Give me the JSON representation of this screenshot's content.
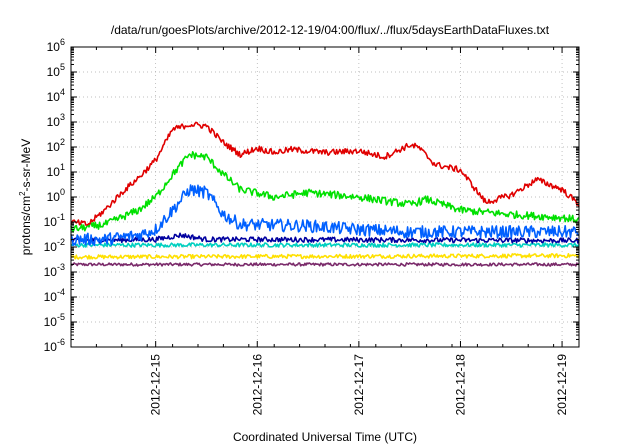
{
  "chart_data": {
    "type": "line",
    "title": "/data/run/goesPlots/archive/2012-12-19/04:00/flux/../flux/5daysEarthDataFluxes.txt",
    "xlabel": "Coordinated Universal Time (UTC)",
    "ylabel": {
      "base": "protons/cm",
      "sup": "2",
      "rest": "-s-sr-MeV"
    },
    "scale": {
      "y": "log",
      "x": "time"
    },
    "xlim": [
      "2012-12-14 04:00",
      "2012-12-19 04:00"
    ],
    "ylim": [
      1e-06,
      1000000.0
    ],
    "grid": true,
    "x_ticks": [
      "2012-12-15",
      "2012-12-16",
      "2012-12-17",
      "2012-12-18",
      "2012-12-19"
    ],
    "y_ticks": [
      {
        "base": "10",
        "exp": "6"
      },
      {
        "base": "10",
        "exp": "5"
      },
      {
        "base": "10",
        "exp": "4"
      },
      {
        "base": "10",
        "exp": "3"
      },
      {
        "base": "10",
        "exp": "2"
      },
      {
        "base": "10",
        "exp": "1"
      },
      {
        "base": "10",
        "exp": "0"
      },
      {
        "base": "10",
        "exp": "-1"
      },
      {
        "base": "10",
        "exp": "-2"
      },
      {
        "base": "10",
        "exp": "-3"
      },
      {
        "base": "10",
        "exp": "-4"
      },
      {
        "base": "10",
        "exp": "-5"
      },
      {
        "base": "10",
        "exp": "-6"
      }
    ],
    "series": [
      {
        "color": "#e00000",
        "noise": 0.12,
        "x": [
          "2012-12-14 04:00",
          "2012-12-14 08:00",
          "2012-12-14 12:00",
          "2012-12-14 16:00",
          "2012-12-14 20:00",
          "2012-12-15 00:00",
          "2012-12-15 04:00",
          "2012-12-15 08:00",
          "2012-12-15 12:00",
          "2012-12-15 16:00",
          "2012-12-15 20:00",
          "2012-12-16 00:00",
          "2012-12-16 04:00",
          "2012-12-16 08:00",
          "2012-12-16 16:00",
          "2012-12-17 00:00",
          "2012-12-17 06:00",
          "2012-12-17 12:00",
          "2012-12-17 14:00",
          "2012-12-17 18:00",
          "2012-12-18 00:00",
          "2012-12-18 06:00",
          "2012-12-18 12:00",
          "2012-12-18 18:00",
          "2012-12-19 00:00",
          "2012-12-19 04:00"
        ],
        "y": [
          0.1,
          0.08,
          0.3,
          1.5,
          6,
          30,
          500,
          800,
          700,
          150,
          50,
          90,
          60,
          80,
          60,
          70,
          40,
          120,
          100,
          20,
          12,
          0.6,
          1.2,
          5,
          2,
          0.5
        ]
      },
      {
        "color": "#00e000",
        "noise": 0.15,
        "x": [
          "2012-12-14 04:00",
          "2012-12-14 12:00",
          "2012-12-14 20:00",
          "2012-12-15 00:00",
          "2012-12-15 04:00",
          "2012-12-15 08:00",
          "2012-12-15 12:00",
          "2012-12-15 16:00",
          "2012-12-15 20:00",
          "2012-12-16 04:00",
          "2012-12-16 12:00",
          "2012-12-17 00:00",
          "2012-12-17 12:00",
          "2012-12-17 16:00",
          "2012-12-18 00:00",
          "2012-12-18 12:00",
          "2012-12-19 00:00",
          "2012-12-19 04:00"
        ],
        "y": [
          0.05,
          0.08,
          0.3,
          1,
          8,
          50,
          40,
          8,
          2,
          1,
          1.5,
          1,
          0.5,
          0.8,
          0.3,
          0.2,
          0.15,
          0.12
        ]
      },
      {
        "color": "#0060ff",
        "noise": 0.25,
        "x": [
          "2012-12-14 04:00",
          "2012-12-14 12:00",
          "2012-12-14 20:00",
          "2012-12-15 00:00",
          "2012-12-15 04:00",
          "2012-12-15 08:00",
          "2012-12-15 12:00",
          "2012-12-15 16:00",
          "2012-12-15 20:00",
          "2012-12-16 12:00",
          "2012-12-17 00:00",
          "2012-12-17 12:00",
          "2012-12-18 00:00",
          "2012-12-19 04:00"
        ],
        "y": [
          0.02,
          0.02,
          0.03,
          0.05,
          0.3,
          2,
          1.5,
          0.2,
          0.08,
          0.07,
          0.05,
          0.04,
          0.04,
          0.04
        ]
      },
      {
        "color": "#0000a0",
        "noise": 0.1,
        "x": [
          "2012-12-14 04:00",
          "2012-12-15 00:00",
          "2012-12-15 06:00",
          "2012-12-15 12:00",
          "2012-12-16 00:00",
          "2012-12-19 04:00"
        ],
        "y": [
          0.018,
          0.02,
          0.03,
          0.02,
          0.02,
          0.018
        ]
      },
      {
        "color": "#00d0c0",
        "noise": 0.08,
        "x": [
          "2012-12-14 04:00",
          "2012-12-19 04:00"
        ],
        "y": [
          0.012,
          0.012
        ]
      },
      {
        "color": "#ffe000",
        "noise": 0.08,
        "x": [
          "2012-12-14 04:00",
          "2012-12-19 04:00"
        ],
        "y": [
          0.004,
          0.0045
        ]
      },
      {
        "color": "#7a2a6a",
        "noise": 0.06,
        "x": [
          "2012-12-14 04:00",
          "2012-12-19 04:00"
        ],
        "y": [
          0.002,
          0.002
        ]
      }
    ]
  }
}
